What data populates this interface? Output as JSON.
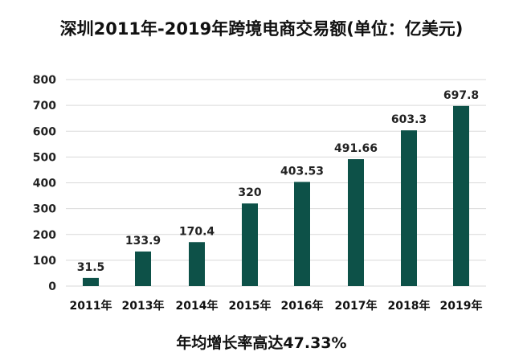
{
  "chart_data": {
    "type": "bar",
    "title": "深圳2011年-2019年跨境电商交易额(单位：亿美元)",
    "categories": [
      "2011年",
      "2013年",
      "2014年",
      "2015年",
      "2016年",
      "2017年",
      "2018年",
      "2019年"
    ],
    "values": [
      31.5,
      133.9,
      170.4,
      320,
      403.53,
      491.66,
      603.3,
      697.8
    ],
    "data_labels": [
      "31.5",
      "133.9",
      "170.4",
      "320",
      "403.53",
      "491.66",
      "603.3",
      "697.8"
    ],
    "y_ticks": [
      0,
      100,
      200,
      300,
      400,
      500,
      600,
      700,
      800
    ],
    "ylim": [
      0,
      800
    ],
    "xlabel": "",
    "ylabel": "",
    "grid": true,
    "legend": "none",
    "bar_color": "#0d5148",
    "grid_color": "#d9d9d9",
    "footnote": "年均增长率高达47.33%"
  }
}
